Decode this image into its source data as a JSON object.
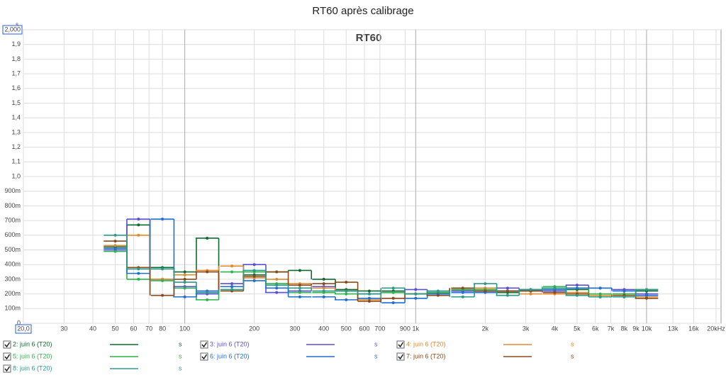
{
  "chart_data": {
    "type": "step",
    "title": "RT60 après calibrage",
    "inner_title": "RT60",
    "yunit": "s",
    "legend_unit": "s",
    "xscale": "log",
    "grid": true,
    "xlim": [
      20,
      20000
    ],
    "ylim": [
      0,
      2
    ],
    "xticks": [
      {
        "value": 20,
        "label": "20,0"
      },
      30,
      40,
      50,
      60,
      70,
      80,
      100,
      200,
      300,
      400,
      500,
      600,
      700,
      900,
      {
        "value": 1000,
        "label": "1k"
      },
      {
        "value": 2000,
        "label": "2k"
      },
      {
        "value": 3000,
        "label": "3k"
      },
      {
        "value": 4000,
        "label": "4k"
      },
      {
        "value": 5000,
        "label": "5k"
      },
      {
        "value": 6000,
        "label": "6k"
      },
      {
        "value": 7000,
        "label": "7k"
      },
      {
        "value": 8000,
        "label": "8k"
      },
      {
        "value": 9000,
        "label": "9k"
      },
      {
        "value": 10000,
        "label": "10k"
      },
      {
        "value": 13000,
        "label": "13k"
      },
      {
        "value": 16000,
        "label": "16k"
      },
      {
        "value": 20000,
        "label": "20kHz"
      }
    ],
    "yticks": [
      0,
      {
        "value": 0.1,
        "label": "100m"
      },
      {
        "value": 0.2,
        "label": "200m"
      },
      {
        "value": 0.3,
        "label": "300m"
      },
      {
        "value": 0.4,
        "label": "400m"
      },
      {
        "value": 0.5,
        "label": "500m"
      },
      {
        "value": 0.6,
        "label": "600m"
      },
      {
        "value": 0.7,
        "label": "700m"
      },
      {
        "value": 0.8,
        "label": "800m"
      },
      {
        "value": 0.9,
        "label": "900m"
      },
      {
        "value": 1.0,
        "label": "1,0"
      },
      {
        "value": 1.1,
        "label": "1,1"
      },
      {
        "value": 1.2,
        "label": "1,2"
      },
      {
        "value": 1.3,
        "label": "1,3"
      },
      {
        "value": 1.4,
        "label": "1,4"
      },
      {
        "value": 1.5,
        "label": "1,5"
      },
      {
        "value": 1.6,
        "label": "1,6"
      },
      {
        "value": 1.7,
        "label": "1,7"
      },
      {
        "value": 1.8,
        "label": "1,8"
      },
      {
        "value": 1.9,
        "label": "1,9"
      },
      {
        "value": 2,
        "label": "2,000"
      }
    ],
    "x": [
      50,
      63,
      80,
      100,
      125,
      160,
      200,
      250,
      315,
      400,
      500,
      630,
      800,
      1000,
      1250,
      1600,
      2000,
      2500,
      3150,
      4000,
      5000,
      6300,
      8000,
      10000
    ],
    "series": [
      {
        "name": "2: juin 6 (T20)",
        "color": "#0e6b30",
        "values": [
          0.52,
          0.67,
          0.38,
          0.35,
          0.58,
          0.25,
          0.33,
          0.35,
          0.36,
          0.3,
          0.23,
          0.22,
          0.22,
          0.2,
          0.21,
          0.23,
          0.22,
          0.21,
          0.23,
          0.24,
          0.23,
          0.18,
          0.18,
          0.22
        ]
      },
      {
        "name": "3: juin 6 (T20)",
        "color": "#5a4fcf",
        "values": [
          0.5,
          0.71,
          0.3,
          0.25,
          0.2,
          0.27,
          0.4,
          0.21,
          0.22,
          0.25,
          0.22,
          0.2,
          0.21,
          0.23,
          0.2,
          0.22,
          0.22,
          0.24,
          0.23,
          0.22,
          0.26,
          0.24,
          0.23,
          0.2
        ]
      },
      {
        "name": "4: juin 6 (T20)",
        "color": "#e08a2e",
        "values": [
          0.53,
          0.6,
          0.3,
          0.33,
          0.36,
          0.39,
          0.31,
          0.3,
          0.27,
          0.24,
          0.22,
          0.16,
          0.17,
          0.2,
          0.2,
          0.24,
          0.24,
          0.22,
          0.2,
          0.2,
          0.21,
          0.19,
          0.2,
          0.18
        ]
      },
      {
        "name": "5: juin 6 (T20)",
        "color": "#2cb34a",
        "values": [
          0.49,
          0.3,
          0.29,
          0.24,
          0.16,
          0.35,
          0.35,
          0.27,
          0.21,
          0.21,
          0.2,
          0.17,
          0.21,
          0.2,
          0.21,
          0.23,
          0.23,
          0.22,
          0.23,
          0.25,
          0.24,
          0.2,
          0.2,
          0.23
        ]
      },
      {
        "name": "6: juin 6 (T20)",
        "color": "#1f6fd0",
        "values": [
          0.51,
          0.34,
          0.71,
          0.18,
          0.22,
          0.25,
          0.29,
          0.24,
          0.18,
          0.18,
          0.16,
          0.17,
          0.14,
          0.17,
          0.2,
          0.21,
          0.21,
          0.22,
          0.22,
          0.23,
          0.24,
          0.24,
          0.22,
          0.19
        ]
      },
      {
        "name": "7: juin 6 (T20)",
        "color": "#8b4a1a",
        "values": [
          0.56,
          0.38,
          0.19,
          0.3,
          0.35,
          0.22,
          0.32,
          0.35,
          0.26,
          0.27,
          0.28,
          0.15,
          0.17,
          0.2,
          0.19,
          0.24,
          0.22,
          0.22,
          0.22,
          0.21,
          0.2,
          0.18,
          0.19,
          0.17
        ]
      },
      {
        "name": "8: juin 6 (T20)",
        "color": "#2a9a8a",
        "values": [
          0.6,
          0.37,
          0.37,
          0.28,
          0.21,
          0.23,
          0.36,
          0.26,
          0.24,
          0.22,
          0.22,
          0.2,
          0.24,
          0.2,
          0.22,
          0.18,
          0.27,
          0.19,
          0.23,
          0.24,
          0.19,
          0.18,
          0.18,
          0.23
        ]
      }
    ]
  }
}
